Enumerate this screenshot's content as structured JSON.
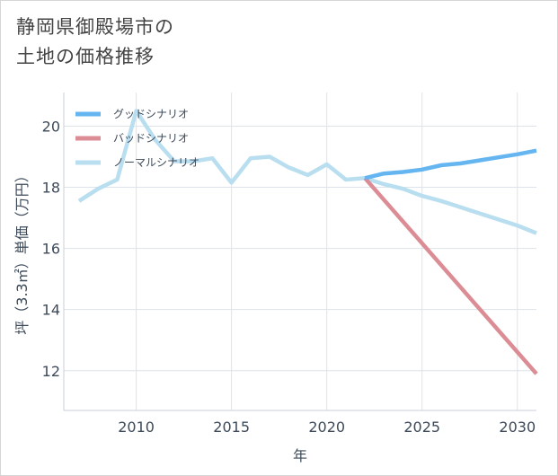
{
  "title_line1": "静岡県御殿場市の",
  "title_line2": "土地の価格推移",
  "chart_data": {
    "type": "line",
    "title": "静岡県御殿場市の 土地の価格推移",
    "xlabel": "年",
    "ylabel": "坪（3.3㎡）単価（万円）",
    "xlim": [
      2006.2,
      2031
    ],
    "ylim": [
      10.7,
      21.1
    ],
    "xticks": [
      2010,
      2015,
      2020,
      2025,
      2030
    ],
    "yticks": [
      12,
      14,
      16,
      18,
      20
    ],
    "grid": true,
    "legend_position": "top-left",
    "series": [
      {
        "name": "グッドシナリオ",
        "color": "#64b5f0",
        "x": [
          2022,
          2023,
          2024,
          2025,
          2026,
          2027,
          2028,
          2029,
          2030,
          2031
        ],
        "values": [
          18.3,
          18.45,
          18.5,
          18.58,
          18.72,
          18.78,
          18.88,
          18.98,
          19.08,
          19.2
        ]
      },
      {
        "name": "バッドシナリオ",
        "color": "#dc8c94",
        "x": [
          2022,
          2031
        ],
        "values": [
          18.3,
          11.9
        ]
      },
      {
        "name": "ノーマルシナリオ",
        "color": "#b8deef",
        "x": [
          2007,
          2008,
          2009,
          2010,
          2011,
          2012,
          2013,
          2014,
          2015,
          2016,
          2017,
          2018,
          2019,
          2020,
          2021,
          2022,
          2023,
          2024,
          2025,
          2026,
          2027,
          2028,
          2029,
          2030,
          2031
        ],
        "values": [
          17.55,
          17.95,
          18.25,
          20.5,
          19.55,
          18.85,
          18.85,
          18.95,
          18.15,
          18.95,
          19.0,
          18.65,
          18.4,
          18.75,
          18.25,
          18.3,
          18.1,
          17.95,
          17.72,
          17.55,
          17.35,
          17.15,
          16.95,
          16.75,
          16.5
        ]
      }
    ]
  }
}
